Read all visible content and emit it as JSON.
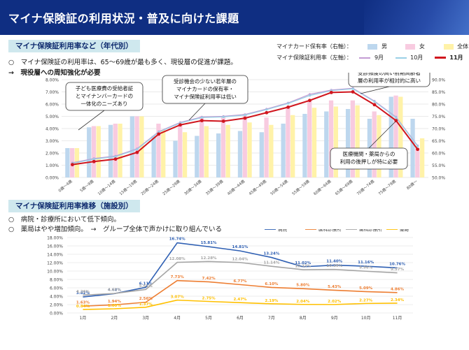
{
  "header": {
    "title": "マイナ保険証の利用状況・普及に向けた課題"
  },
  "section1": {
    "label": "マイナ保険証利用率など（年代別）",
    "bullet1": "○　マイナ保険証の利用率は、65～69歳が最も多く、現役層の促進が課題。",
    "bullet2": "→　現役層への周知強化が必要"
  },
  "legend1": {
    "card_label": "マイナカード保有率（右軸）：",
    "use_label": "マイナ保険証利用率（左軸）：",
    "male": "男",
    "female": "女",
    "total": "全体",
    "sep": "9月",
    "oct": "10月",
    "nov": "11月",
    "colors": {
      "male": "#bdd7ee",
      "female": "#f8cbe0",
      "total": "#fff2a8",
      "sep": "#c39bd3",
      "oct": "#9ad0e6",
      "nov": "#d0161e"
    }
  },
  "callouts": {
    "c1": [
      "子ども医療費の受給者証",
      "とマイナンバーカードの",
      "一体化のニーズあり"
    ],
    "c2": [
      "受診機会の少ない若年層の",
      "マイナカードの保有率・",
      "マイナ保険証利用率は低い"
    ],
    "c3": [
      "受診頻度の高い前期高齢者",
      "層の利用率が相対的に高い"
    ],
    "c4": [
      "医療機関・薬局からの",
      "利用の後押しが特に必要"
    ]
  },
  "section2": {
    "label": "マイナ保険証利用率推移（施設別）",
    "bullet1": "○　病院・診療所において低下傾向。",
    "bullet2": "○　薬局はやや増加傾向。　→　グループ全体で声かけに取り組んでいる"
  },
  "chart_data": [
    {
      "type": "bar",
      "categories": [
        "0歳～4歳",
        "5歳～9歳",
        "10歳～14歳",
        "15歳～19歳",
        "20歳～24歳",
        "25歳～29歳",
        "30歳～34歳",
        "35歳～39歳",
        "40歳～44歳",
        "45歳～49歳",
        "50歳～54歳",
        "55歳～59歳",
        "60歳～64歳",
        "65歳～69歳",
        "70歳～74歳",
        "75歳～79歳",
        "80歳～"
      ],
      "y_ticks_left": [
        "0.00%",
        "1.00%",
        "2.00%",
        "3.00%",
        "4.00%",
        "5.00%",
        "6.00%",
        "7.00%",
        "8.00%"
      ],
      "y_ticks_right": [
        "50.0%",
        "55.0%",
        "60.0%",
        "65.0%",
        "70.0%",
        "75.0%",
        "80.0%",
        "85.0%",
        "90.0%"
      ],
      "ylim_left": [
        0,
        8
      ],
      "ylim_right": [
        50,
        90
      ],
      "bar_series": [
        {
          "name": "男",
          "axis": "right",
          "values": [
            62,
            70.5,
            71.5,
            75,
            67,
            65,
            67,
            68,
            69,
            68.5,
            72,
            76,
            77,
            78,
            74,
            83,
            74
          ]
        },
        {
          "name": "女",
          "axis": "right",
          "values": [
            62,
            71,
            72,
            75,
            72,
            72,
            75,
            75,
            76,
            74.5,
            79,
            81.5,
            81.5,
            81.5,
            77,
            83.5,
            62
          ]
        },
        {
          "name": "全体",
          "axis": "right",
          "values": [
            62,
            71,
            72,
            75,
            69.5,
            68.5,
            71,
            71.5,
            72.5,
            71.5,
            75.5,
            78.5,
            79,
            79.5,
            75.5,
            83,
            66
          ]
        }
      ],
      "line_series": [
        {
          "name": "9月",
          "axis": "left",
          "values": [
            1.2,
            1.55,
            1.75,
            2.35,
            3.75,
            4.5,
            4.95,
            5.0,
            5.15,
            5.6,
            6.1,
            6.8,
            7.15,
            7.3,
            6.25,
            4.95,
            2.6
          ]
        },
        {
          "name": "10月",
          "axis": "left",
          "values": [
            1.15,
            1.5,
            1.7,
            2.3,
            3.7,
            4.45,
            4.9,
            4.95,
            5.1,
            5.55,
            6.05,
            6.7,
            7.1,
            7.25,
            6.2,
            4.9,
            2.55
          ]
        },
        {
          "name": "11月",
          "axis": "left",
          "values": [
            1.05,
            1.3,
            1.5,
            2.05,
            3.55,
            4.3,
            4.65,
            4.6,
            4.85,
            5.3,
            5.75,
            6.3,
            6.95,
            7.0,
            5.95,
            4.65,
            2.3
          ]
        }
      ]
    },
    {
      "type": "line",
      "categories": [
        "1月",
        "2月",
        "3月",
        "4月",
        "5月",
        "6月",
        "7月",
        "8月",
        "9月",
        "10月",
        "11月"
      ],
      "y_ticks": [
        "0.00%",
        "2.00%",
        "4.00%",
        "6.00%",
        "8.00%",
        "10.00%",
        "12.00%",
        "14.00%",
        "16.00%",
        "18.00%"
      ],
      "ylim": [
        0,
        18
      ],
      "series": [
        {
          "name": "病院",
          "color": "#2e5fb3",
          "values": [
            3.82,
            4.62,
            6.11,
            16.74,
            15.81,
            14.81,
            13.24,
            11.02,
            11.4,
            11.16,
            10.76
          ],
          "labels": [
            "3.82%",
            "4.62%",
            "6.11%",
            "16.74%",
            "15.81%",
            "14.81%",
            "13.24%",
            "11.02%",
            "11.40%",
            "11.16%",
            "10.76%"
          ]
        },
        {
          "name": "医科診療所",
          "color": "#ed7d31",
          "values": [
            1.63,
            1.94,
            2.56,
            7.73,
            7.42,
            6.77,
            6.1,
            5.8,
            5.43,
            5.09,
            4.86
          ],
          "labels": [
            "1.63%",
            "1.94%",
            "2.56%",
            "7.73%",
            "7.42%",
            "6.77%",
            "6.10%",
            "5.80%",
            "5.43%",
            "5.09%",
            "4.86%"
          ]
        },
        {
          "name": "歯科診療所",
          "color": "#a5a5a5",
          "values": [
            4.26,
            4.65,
            5.61,
            12.08,
            12.28,
            12.04,
            11.14,
            10.33,
            10.39,
            9.96,
            9.57
          ],
          "labels": [
            "4.26%",
            "4.65%",
            "5.61%",
            "12.08%",
            "12.28%",
            "12.04%",
            "11.14%",
            "10.33%",
            "10.39%",
            "9.96%",
            "9.57%"
          ]
        },
        {
          "name": "薬局",
          "color": "#ffc000",
          "values": [
            0.84,
            1.0,
            1.37,
            3.07,
            2.75,
            2.47,
            2.19,
            2.04,
            2.02,
            2.27,
            2.34
          ],
          "labels": [
            "0.84%",
            "1.00%",
            "1.37%",
            "3.07%",
            "2.75%",
            "2.47%",
            "2.19%",
            "2.04%",
            "2.02%",
            "2.27%",
            "2.34%"
          ]
        }
      ]
    }
  ]
}
